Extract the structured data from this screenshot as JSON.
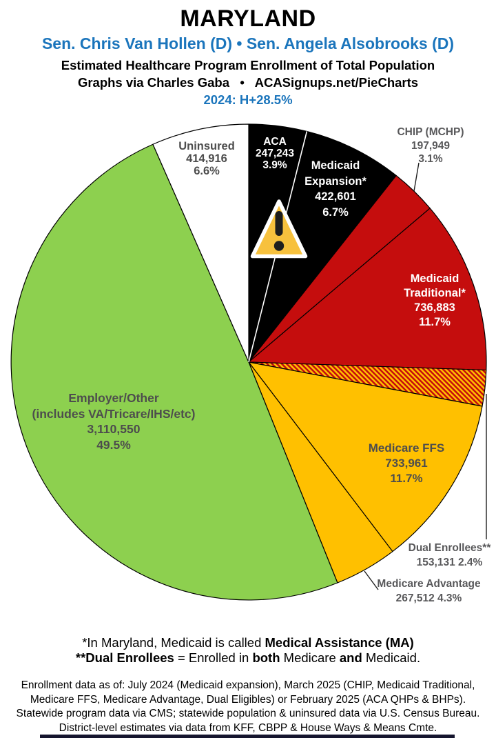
{
  "header": {
    "state": "MARYLAND",
    "senators": "Sen. Chris Van Hollen (D) • Sen. Angela Alsobrooks (D)",
    "subtitle": "Estimated Healthcare Program Enrollment of Total Population",
    "credit": "Graphs via Charles Gaba   •   ACASignups.net/PieCharts",
    "partisan_lean": "2024: H+28.5%",
    "accent_blue": "#1B75BC"
  },
  "chart_data": {
    "type": "pie",
    "title": "Estimated Healthcare Program Enrollment of Total Population",
    "start_angle": "12 o'clock, clockwise",
    "legend_position": "labels on/beside slices",
    "slices": [
      {
        "label": "ACA",
        "value": 247243,
        "value_text": "247,243",
        "pct": 3.9,
        "pct_text": "3.9%",
        "color": "#000000",
        "label_color": "#FFFFFF"
      },
      {
        "label": "Medicaid Expansion*",
        "value": 422601,
        "value_text": "422,601",
        "pct": 6.7,
        "pct_text": "6.7%",
        "color": "#000000",
        "label_color": "#FFFFFF"
      },
      {
        "label": "CHIP (MCHP)",
        "value": 197949,
        "value_text": "197,949",
        "pct": 3.1,
        "pct_text": "3.1%",
        "color": "#C50D0D",
        "label_color": "#58585A",
        "label_outside": true
      },
      {
        "label": "Medicaid Traditional*",
        "value": 736883,
        "value_text": "736,883",
        "pct": 11.7,
        "pct_text": "11.7%",
        "color": "#C50D0D",
        "label_color": "#FFFFFF"
      },
      {
        "label": "Dual Enrollees**",
        "value": 153131,
        "value_text": "153,131",
        "pct": 2.4,
        "pct_text": "2.4%",
        "color": "hatch",
        "hatch_colors": [
          "#C50D0D",
          "#FFC000"
        ],
        "label_color": "#58585A",
        "label_outside": true
      },
      {
        "label": "Medicare FFS",
        "value": 733961,
        "value_text": "733,961",
        "pct": 11.7,
        "pct_text": "11.7%",
        "color": "#FFC000",
        "label_color": "#4D4D4D"
      },
      {
        "label": "Medicare Advantage",
        "value": 267512,
        "value_text": "267,512",
        "pct": 4.3,
        "pct_text": "4.3%",
        "color": "#FFC000",
        "label_color": "#58585A",
        "label_outside": true
      },
      {
        "label": "Employer/Other",
        "sublabel": "(includes VA/Tricare/IHS/etc)",
        "value": 3110550,
        "value_text": "3,110,550",
        "pct": 49.5,
        "pct_text": "49.5%",
        "color": "#8DD04F",
        "label_color": "#4D4D4D"
      },
      {
        "label": "Uninsured",
        "value": 414916,
        "value_text": "414,916",
        "pct": 6.6,
        "pct_text": "6.6%",
        "color": "#FFFFFF",
        "label_color": "#4D4D4D"
      }
    ]
  },
  "warning_icon": {
    "glyph": "exclamation-triangle",
    "fill": "#F7C13D"
  },
  "footnotes": {
    "line1_normal": "*In Maryland, Medicaid is called ",
    "line1_bold": "Medical Assistance (MA)",
    "line2_bold1": "**Dual Enrollees",
    "line2_normal1": " = Enrolled in ",
    "line2_bold2": "both",
    "line2_normal2": " Medicare ",
    "line2_bold3": "and",
    "line2_normal3": " Medicaid."
  },
  "sources": {
    "lines": [
      "Enrollment data as of: July 2024 (Medicaid expansion), March 2025 (CHIP, Medicaid Traditional,",
      "Medicare FFS, Medicare Advantage, Dual Eligibles) or February 2025 (ACA QHPs & BHPs).",
      "Statewide program data via CMS; statewide population & uninsured data via U.S. Census Bureau.",
      "District-level estimates via data from KFF, CBPP & House Ways & Means Cmte."
    ]
  }
}
